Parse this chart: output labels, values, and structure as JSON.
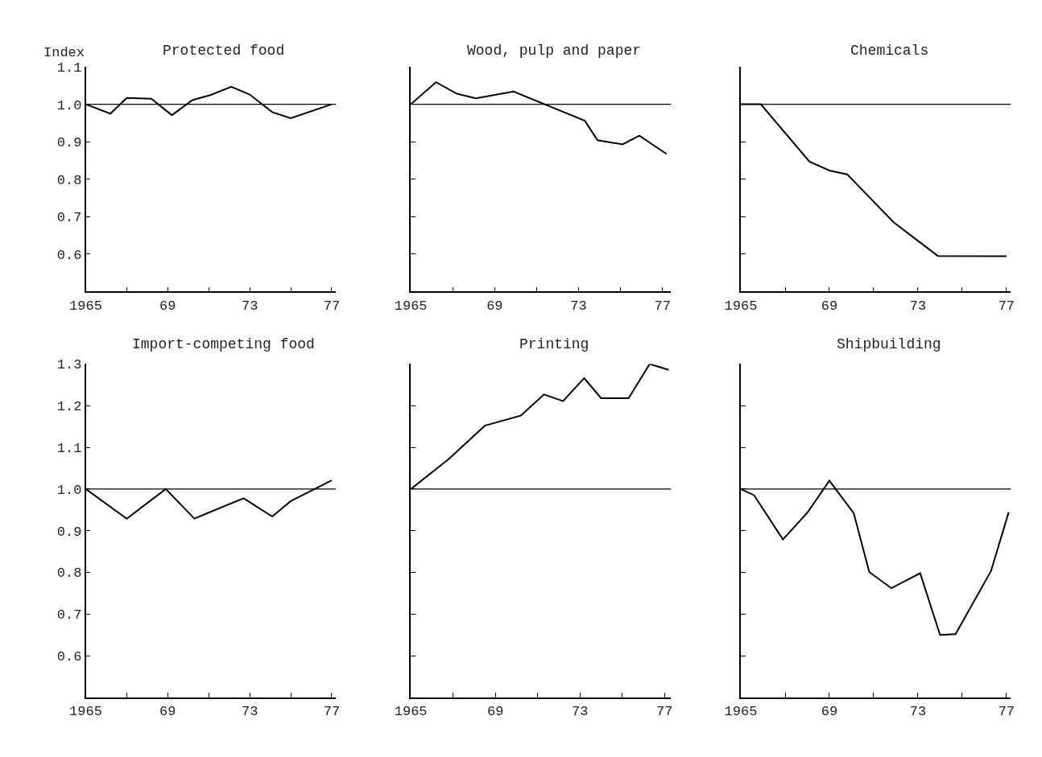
{
  "chart_data": [
    {
      "type": "line",
      "title": "Protected food",
      "ylabel": "Index",
      "x": [
        1965,
        1966.2,
        1967.0,
        1968.2,
        1969.2,
        1970.2,
        1971.1,
        1972.1,
        1973.0,
        1974.1,
        1975.0,
        1977
      ],
      "series": [
        {
          "color": "#000000",
          "values": [
            1.0,
            0.975,
            1.017,
            1.015,
            0.971,
            1.011,
            1.025,
            1.047,
            1.026,
            0.979,
            0.963,
            1.0
          ]
        }
      ],
      "xlim": [
        1965,
        1977.2
      ],
      "xticks": [
        {
          "value": 1965,
          "label": "1965"
        },
        {
          "value": 1967,
          "label": null
        },
        {
          "value": 1969,
          "label": "69"
        },
        {
          "value": 1971,
          "label": null
        },
        {
          "value": 1973,
          "label": "73"
        },
        {
          "value": 1975,
          "label": null
        },
        {
          "value": 1977,
          "label": "77"
        }
      ],
      "ylim": [
        0.5,
        1.1
      ],
      "yticks": [
        0.6,
        0.7,
        0.8,
        0.9,
        {
          "value": 1.0,
          "label": "1.0"
        },
        1.1
      ],
      "ref_lines": [
        {
          "axis": "y",
          "value": 1.0,
          "color": "#000000"
        }
      ]
    },
    {
      "type": "line",
      "title": "Wood, pulp and paper",
      "x": [
        1965,
        1966.2,
        1967.2,
        1968.1,
        1969.9,
        1973.3,
        1973.9,
        1975.1,
        1975.9,
        1977.2
      ],
      "series": [
        {
          "color": "#000000",
          "values": [
            1.0,
            1.059,
            1.028,
            1.016,
            1.034,
            0.956,
            0.904,
            0.893,
            0.916,
            0.867
          ]
        }
      ],
      "xlim": [
        1965,
        1977.4
      ],
      "xticks": [
        {
          "value": 1965,
          "label": "1965"
        },
        {
          "value": 1967,
          "label": null
        },
        {
          "value": 1969,
          "label": "69"
        },
        {
          "value": 1971,
          "label": null
        },
        {
          "value": 1973,
          "label": "73"
        },
        {
          "value": 1975,
          "label": null
        },
        {
          "value": 1977,
          "label": "77"
        }
      ],
      "ylim": [
        0.5,
        1.1
      ],
      "yticks": [
        {
          "value": 0.6,
          "label": null
        },
        {
          "value": 0.7,
          "label": null
        },
        {
          "value": 0.8,
          "label": null
        },
        {
          "value": 0.9,
          "label": null
        },
        {
          "value": 1.0,
          "label": null
        },
        {
          "value": 1.1,
          "label": null
        }
      ],
      "tick_labels": "x",
      "ref_lines": [
        {
          "axis": "y",
          "value": 1.0,
          "color": "#000000"
        }
      ]
    },
    {
      "type": "line",
      "title": "Chemicals",
      "x": [
        1965,
        1965.9,
        1968.1,
        1969.0,
        1969.8,
        1971.9,
        1973.9,
        1977
      ],
      "series": [
        {
          "color": "#000000",
          "values": [
            1.0,
            1.0,
            0.847,
            0.823,
            0.813,
            0.685,
            0.595,
            0.594
          ]
        }
      ],
      "xlim": [
        1965,
        1977.2
      ],
      "xticks": [
        {
          "value": 1965,
          "label": "1965"
        },
        {
          "value": 1967,
          "label": null
        },
        {
          "value": 1969,
          "label": "69"
        },
        {
          "value": 1971,
          "label": null
        },
        {
          "value": 1973,
          "label": "73"
        },
        {
          "value": 1975,
          "label": null
        },
        {
          "value": 1977,
          "label": "77"
        }
      ],
      "ylim": [
        0.5,
        1.1
      ],
      "yticks": [
        {
          "value": 0.6,
          "label": null
        },
        {
          "value": 0.7,
          "label": null
        },
        {
          "value": 0.8,
          "label": null
        },
        {
          "value": 0.9,
          "label": null
        },
        {
          "value": 1.0,
          "label": null
        },
        {
          "value": 1.1,
          "label": null
        }
      ],
      "tick_labels": "x",
      "ref_lines": [
        {
          "axis": "y",
          "value": 1.0,
          "color": "#000000"
        }
      ]
    },
    {
      "type": "line",
      "title": "Import-competing food",
      "x": [
        1965,
        1967.0,
        1968.9,
        1970.3,
        1972.7,
        1974.1,
        1975.0,
        1977
      ],
      "series": [
        {
          "color": "#000000",
          "values": [
            1.0,
            0.929,
            1.0,
            0.929,
            0.978,
            0.934,
            0.971,
            1.021
          ]
        }
      ],
      "xlim": [
        1965,
        1977.2
      ],
      "xticks": [
        {
          "value": 1965,
          "label": "1965"
        },
        {
          "value": 1967,
          "label": null
        },
        {
          "value": 1969,
          "label": "69"
        },
        {
          "value": 1971,
          "label": null
        },
        {
          "value": 1973,
          "label": "73"
        },
        {
          "value": 1975,
          "label": null
        },
        {
          "value": 1977,
          "label": "77"
        }
      ],
      "ylim": [
        0.5,
        1.3
      ],
      "yticks": [
        0.6,
        0.7,
        0.8,
        0.9,
        {
          "value": 1.0,
          "label": "1.0"
        },
        1.1,
        1.2,
        1.3
      ],
      "ref_lines": [
        {
          "axis": "y",
          "value": 1.0,
          "color": "#000000"
        }
      ]
    },
    {
      "type": "line",
      "title": "Printing",
      "x": [
        1965,
        1966.8,
        1968.5,
        1970.2,
        1971.3,
        1972.2,
        1973.2,
        1974.0,
        1975.3,
        1976.3,
        1977.2
      ],
      "series": [
        {
          "color": "#000000",
          "values": [
            1.0,
            1.072,
            1.152,
            1.176,
            1.227,
            1.211,
            1.266,
            1.218,
            1.218,
            1.3,
            1.286
          ]
        }
      ],
      "xlim": [
        1965,
        1977.3
      ],
      "xticks": [
        {
          "value": 1965,
          "label": "1965"
        },
        {
          "value": 1967,
          "label": null
        },
        {
          "value": 1969,
          "label": "69"
        },
        {
          "value": 1971,
          "label": null
        },
        {
          "value": 1973,
          "label": "73"
        },
        {
          "value": 1975,
          "label": null
        },
        {
          "value": 1977,
          "label": "77"
        }
      ],
      "ylim": [
        0.5,
        1.3
      ],
      "yticks": [
        {
          "value": 0.6,
          "label": null
        },
        {
          "value": 0.7,
          "label": null
        },
        {
          "value": 0.8,
          "label": null
        },
        {
          "value": 0.9,
          "label": null
        },
        {
          "value": 1.0,
          "label": null
        },
        {
          "value": 1.1,
          "label": null
        },
        {
          "value": 1.2,
          "label": null
        },
        {
          "value": 1.3,
          "label": null
        }
      ],
      "tick_labels": "x",
      "ref_lines": [
        {
          "axis": "y",
          "value": 1.0,
          "color": "#000000"
        }
      ]
    },
    {
      "type": "line",
      "title": "Shipbuilding",
      "x": [
        1965,
        1965.6,
        1966.9,
        1968.0,
        1969.0,
        1970.1,
        1970.8,
        1971.8,
        1973.1,
        1974.0,
        1974.7,
        1976.3,
        1977.1
      ],
      "series": [
        {
          "color": "#000000",
          "values": [
            1.0,
            0.985,
            0.879,
            0.943,
            1.02,
            0.942,
            0.801,
            0.762,
            0.798,
            0.65,
            0.652,
            0.803,
            0.944
          ]
        }
      ],
      "xlim": [
        1965,
        1977.2
      ],
      "xticks": [
        {
          "value": 1965,
          "label": "1965"
        },
        {
          "value": 1967,
          "label": null
        },
        {
          "value": 1969,
          "label": "69"
        },
        {
          "value": 1971,
          "label": null
        },
        {
          "value": 1973,
          "label": "73"
        },
        {
          "value": 1975,
          "label": null
        },
        {
          "value": 1977,
          "label": "77"
        }
      ],
      "ylim": [
        0.5,
        1.3
      ],
      "yticks": [
        {
          "value": 0.6,
          "label": null
        },
        {
          "value": 0.7,
          "label": null
        },
        {
          "value": 0.8,
          "label": null
        },
        {
          "value": 0.9,
          "label": null
        },
        {
          "value": 1.0,
          "label": null
        },
        {
          "value": 1.1,
          "label": null
        },
        {
          "value": 1.2,
          "label": null
        },
        {
          "value": 1.3,
          "label": null
        }
      ],
      "tick_labels": "x",
      "ref_lines": [
        {
          "axis": "y",
          "value": 1.0,
          "color": "#000000"
        }
      ]
    }
  ]
}
